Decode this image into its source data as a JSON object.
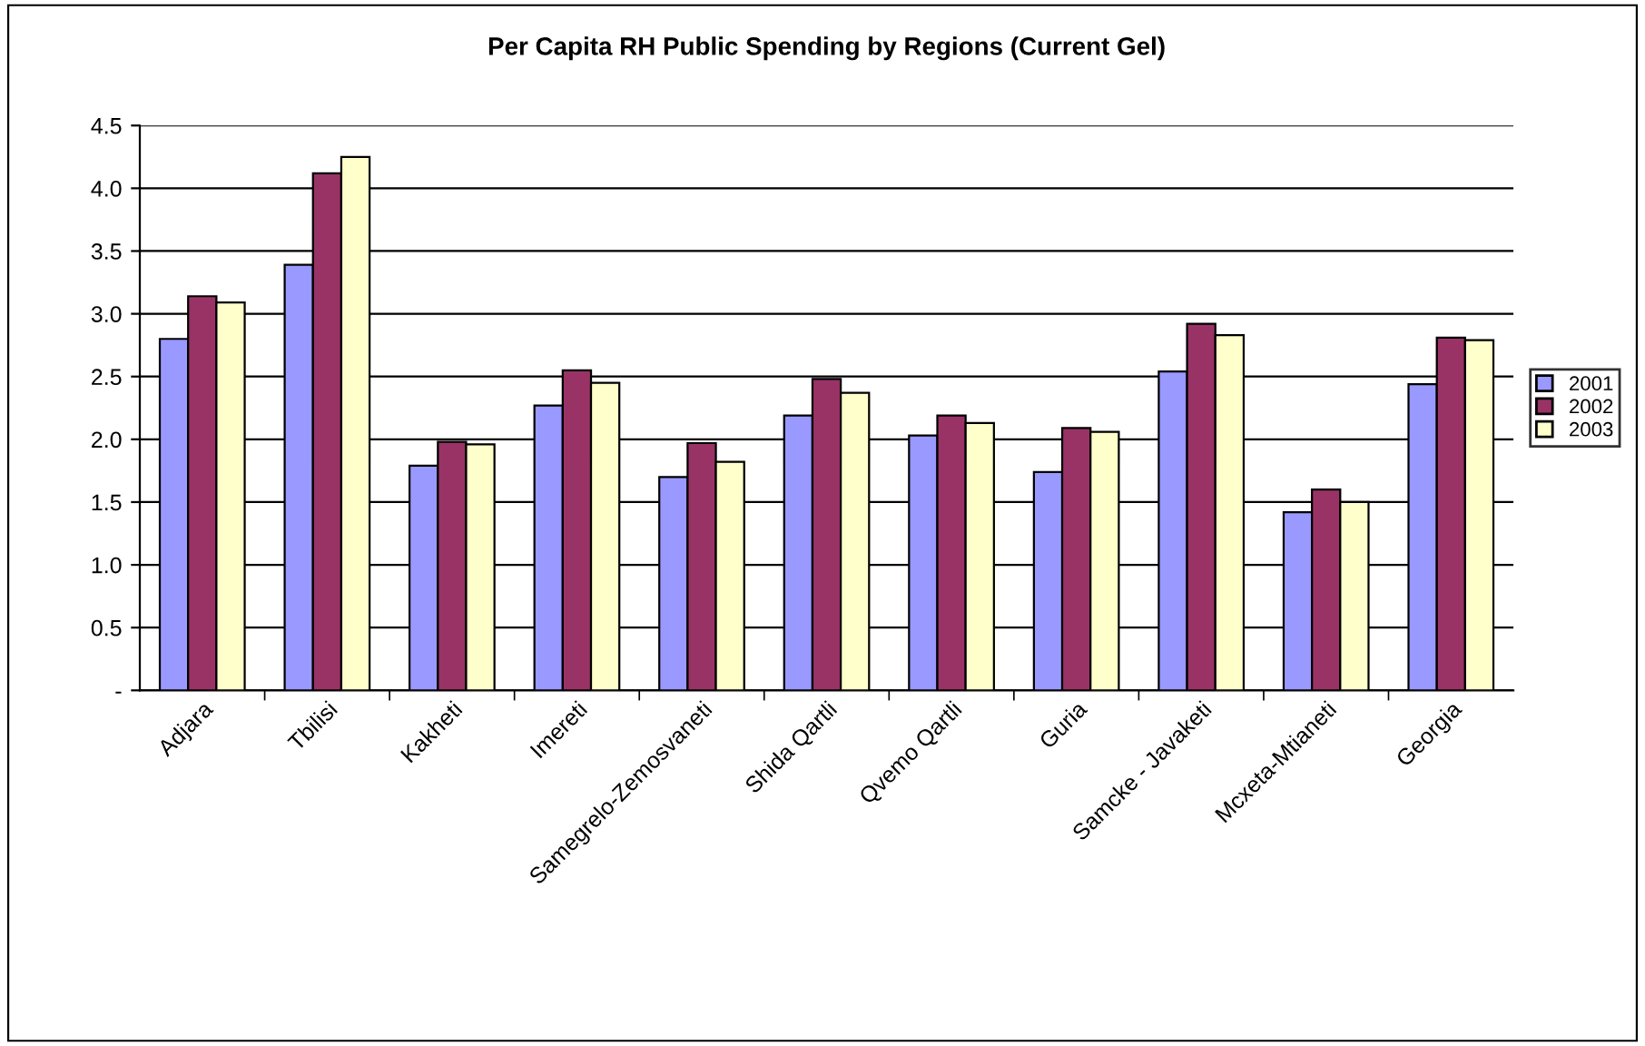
{
  "chart_data": {
    "type": "bar",
    "title": "Per Capita RH Public Spending by Regions (Current Gel)",
    "categories": [
      "Adjara",
      "Tbilisi",
      "Kakheti",
      "Imereti",
      "Samegrelo-Zemosvaneti",
      "Shida Qartli",
      "Qvemo Qartli",
      "Guria",
      "Samcke - Javaketi",
      "Mcxeta-Mtianeti",
      "Georgia"
    ],
    "series": [
      {
        "name": "2001",
        "color": "#9999ff",
        "values": [
          2.8,
          3.39,
          1.79,
          2.27,
          1.7,
          2.19,
          2.03,
          1.74,
          2.54,
          1.42,
          2.44
        ]
      },
      {
        "name": "2002",
        "color": "#993366",
        "values": [
          3.14,
          4.12,
          1.98,
          2.55,
          1.97,
          2.48,
          2.19,
          2.09,
          2.92,
          1.6,
          2.81
        ]
      },
      {
        "name": "2003",
        "color": "#ffffcc",
        "values": [
          3.09,
          4.25,
          1.96,
          2.45,
          1.82,
          2.37,
          2.13,
          2.06,
          2.83,
          1.5,
          2.79
        ]
      }
    ],
    "ylim": [
      0,
      4.5
    ],
    "yticks": [
      {
        "value": 0,
        "label": "-"
      },
      0.5,
      {
        "value": 1,
        "label": "1.0"
      },
      1.5,
      {
        "value": 2,
        "label": "2.0"
      },
      2.5,
      {
        "value": 3,
        "label": "3.0"
      },
      3.5,
      {
        "value": 4,
        "label": "4.0"
      },
      4.5
    ],
    "grid": "y",
    "legend": "right"
  }
}
